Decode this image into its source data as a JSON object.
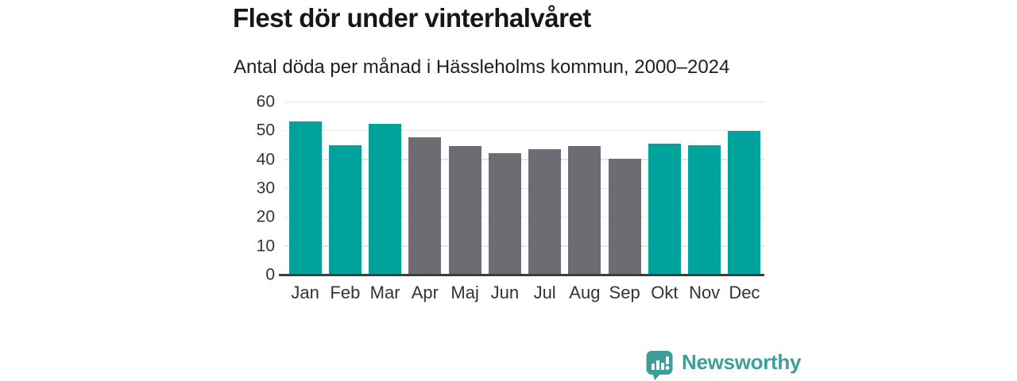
{
  "header": {
    "title": "Flest dör under vinterhalvåret",
    "subtitle": "Antal döda per månad i Hässleholms kommun, 2000–2024"
  },
  "chart_data": {
    "type": "bar",
    "title": "Flest dör under vinterhalvåret",
    "subtitle": "Antal döda per månad i Hässleholms kommun, 2000–2024",
    "categories": [
      "Jan",
      "Feb",
      "Mar",
      "Apr",
      "Maj",
      "Jun",
      "Jul",
      "Aug",
      "Sep",
      "Okt",
      "Nov",
      "Dec"
    ],
    "values": [
      53.0,
      44.9,
      52.4,
      47.6,
      44.7,
      42.0,
      43.5,
      44.5,
      40.2,
      45.5,
      44.8,
      49.9
    ],
    "bar_roles": [
      "winter",
      "winter",
      "winter",
      "summer",
      "summer",
      "summer",
      "summer",
      "summer",
      "summer",
      "winter",
      "winter",
      "winter"
    ],
    "xlabel": "",
    "ylabel": "",
    "ylim": [
      0,
      60
    ],
    "yticks": [
      0,
      10,
      20,
      30,
      40,
      50,
      60
    ],
    "grid": true,
    "legend": false
  },
  "colors": {
    "bar-winter": "#00a39b",
    "bar-summer": "#6e6b73",
    "brand": "#3f9d9a",
    "grid": "#e6e4e7",
    "axis": "#3d3d3d",
    "title": "#171717",
    "tick": "#343434"
  },
  "footer": {
    "brand": "Newsworthy"
  }
}
